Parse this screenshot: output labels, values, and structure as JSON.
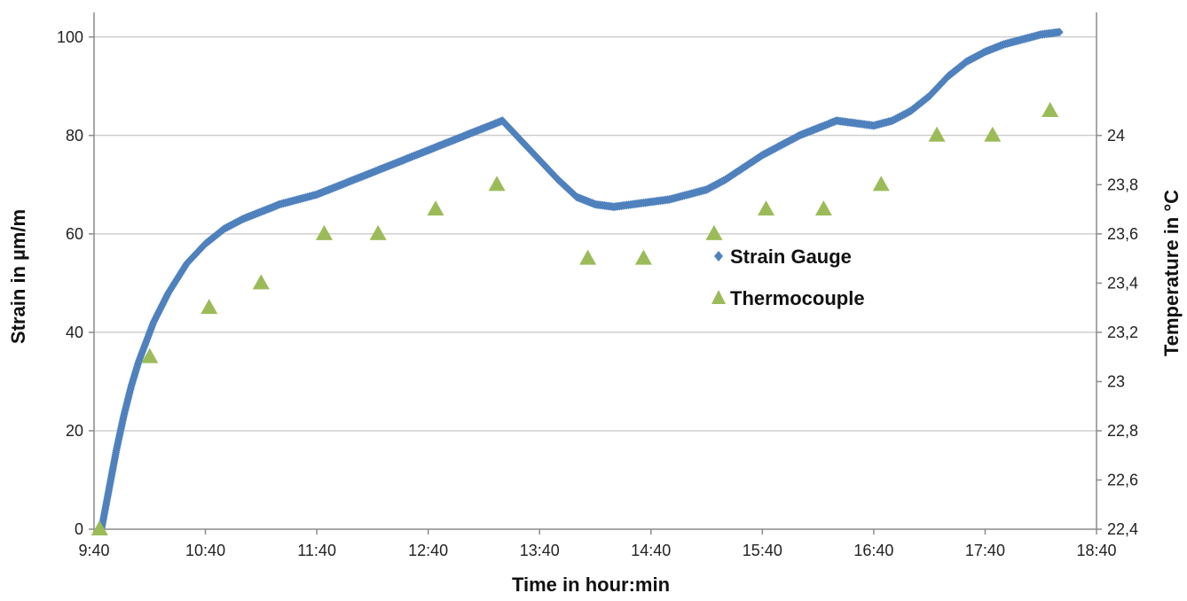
{
  "chart_data": {
    "type": "line",
    "title": "",
    "xlabel": "Time in hour:min",
    "ylabel": "Strain in µm/m",
    "y2label": "Temperature in °C",
    "x_ticks": [
      "9:40",
      "10:40",
      "11:40",
      "12:40",
      "13:40",
      "14:40",
      "15:40",
      "16:40",
      "17:40",
      "18:40"
    ],
    "y_ticks": [
      "0",
      "20",
      "40",
      "60",
      "80",
      "100"
    ],
    "y2_ticks": [
      "22,4",
      "22,6",
      "22,8",
      "23",
      "23,2",
      "23,4",
      "23,6",
      "23,8",
      "24"
    ],
    "xlim": [
      "9:40",
      "18:40"
    ],
    "ylim": [
      0,
      105
    ],
    "y2lim": [
      22.4,
      24.5
    ],
    "grid": true,
    "legend_position": "center-right",
    "series": [
      {
        "name": "Strain Gauge",
        "axis": "left",
        "marker": "diamond",
        "color": "#4F81BD",
        "points": [
          [
            "9:44",
            0
          ],
          [
            "9:48",
            8
          ],
          [
            "9:52",
            16
          ],
          [
            "9:56",
            23
          ],
          [
            "10:00",
            29
          ],
          [
            "10:04",
            34
          ],
          [
            "10:08",
            38
          ],
          [
            "10:12",
            42
          ],
          [
            "10:16",
            45
          ],
          [
            "10:20",
            48
          ],
          [
            "10:25",
            51
          ],
          [
            "10:30",
            54
          ],
          [
            "10:35",
            56
          ],
          [
            "10:40",
            58
          ],
          [
            "10:45",
            59.5
          ],
          [
            "10:50",
            61
          ],
          [
            "11:00",
            63
          ],
          [
            "11:10",
            64.5
          ],
          [
            "11:20",
            66
          ],
          [
            "11:30",
            67
          ],
          [
            "11:40",
            68
          ],
          [
            "11:50",
            69.5
          ],
          [
            "12:00",
            71
          ],
          [
            "12:10",
            72.5
          ],
          [
            "12:20",
            74
          ],
          [
            "12:30",
            75.5
          ],
          [
            "12:40",
            77
          ],
          [
            "12:50",
            78.5
          ],
          [
            "13:00",
            80
          ],
          [
            "13:10",
            81.5
          ],
          [
            "13:20",
            83
          ],
          [
            "13:30",
            79
          ],
          [
            "13:40",
            75
          ],
          [
            "13:50",
            71
          ],
          [
            "14:00",
            67.5
          ],
          [
            "14:10",
            66
          ],
          [
            "14:20",
            65.5
          ],
          [
            "14:30",
            66
          ],
          [
            "14:40",
            66.5
          ],
          [
            "14:50",
            67
          ],
          [
            "15:00",
            68
          ],
          [
            "15:10",
            69
          ],
          [
            "15:20",
            71
          ],
          [
            "15:30",
            73.5
          ],
          [
            "15:40",
            76
          ],
          [
            "15:50",
            78
          ],
          [
            "16:00",
            80
          ],
          [
            "16:10",
            81.5
          ],
          [
            "16:20",
            83
          ],
          [
            "16:30",
            82.5
          ],
          [
            "16:40",
            82
          ],
          [
            "16:50",
            83
          ],
          [
            "17:00",
            85
          ],
          [
            "17:10",
            88
          ],
          [
            "17:20",
            92
          ],
          [
            "17:30",
            95
          ],
          [
            "17:40",
            97
          ],
          [
            "17:50",
            98.5
          ],
          [
            "18:00",
            99.5
          ],
          [
            "18:10",
            100.5
          ],
          [
            "18:20",
            101
          ]
        ]
      },
      {
        "name": "Thermocouple",
        "axis": "right",
        "marker": "triangle",
        "color": "#9BBB59",
        "points": [
          [
            "9:43",
            22.4
          ],
          [
            "10:10",
            23.1
          ],
          [
            "10:42",
            23.3
          ],
          [
            "11:10",
            23.4
          ],
          [
            "11:44",
            23.6
          ],
          [
            "12:13",
            23.6
          ],
          [
            "12:44",
            23.7
          ],
          [
            "13:17",
            23.8
          ],
          [
            "14:06",
            23.5
          ],
          [
            "14:36",
            23.5
          ],
          [
            "15:14",
            23.6
          ],
          [
            "15:42",
            23.7
          ],
          [
            "16:13",
            23.7
          ],
          [
            "16:44",
            23.8
          ],
          [
            "17:14",
            24.0
          ],
          [
            "17:44",
            24.0
          ],
          [
            "18:15",
            24.1
          ]
        ]
      }
    ]
  }
}
